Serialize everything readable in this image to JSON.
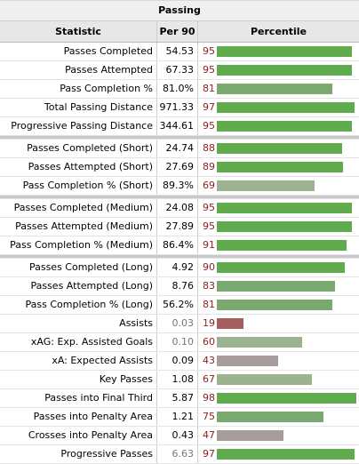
{
  "title": "Passing",
  "headers": {
    "statistic": "Statistic",
    "per90": "Per 90",
    "percentile": "Percentile"
  },
  "colors": {
    "bar_high": "#5fab4d",
    "bar_mid": "#7aa96f",
    "bar_low_mid": "#9cb38f",
    "bar_neutral": "#a79c9c",
    "bar_low": "#a65d5d",
    "percentile_text": "#8a1e1e"
  },
  "groups": [
    [
      {
        "stat": "Passes Completed",
        "per90": "54.53",
        "pct": "95",
        "level": 95,
        "grey": false
      },
      {
        "stat": "Passes Attempted",
        "per90": "67.33",
        "pct": "95",
        "level": 95,
        "grey": false
      },
      {
        "stat": "Pass Completion %",
        "per90": "81.0%",
        "pct": "81",
        "level": 81,
        "grey": false
      },
      {
        "stat": "Total Passing Distance",
        "per90": "971.33",
        "pct": "97",
        "level": 97,
        "grey": false
      },
      {
        "stat": "Progressive Passing Distance",
        "per90": "344.61",
        "pct": "95",
        "level": 95,
        "grey": false
      }
    ],
    [
      {
        "stat": "Passes Completed (Short)",
        "per90": "24.74",
        "pct": "88",
        "level": 88,
        "grey": false
      },
      {
        "stat": "Passes Attempted (Short)",
        "per90": "27.69",
        "pct": "89",
        "level": 89,
        "grey": false
      },
      {
        "stat": "Pass Completion % (Short)",
        "per90": "89.3%",
        "pct": "69",
        "level": 69,
        "grey": false
      }
    ],
    [
      {
        "stat": "Passes Completed (Medium)",
        "per90": "24.08",
        "pct": "95",
        "level": 95,
        "grey": false
      },
      {
        "stat": "Passes Attempted (Medium)",
        "per90": "27.89",
        "pct": "95",
        "level": 95,
        "grey": false
      },
      {
        "stat": "Pass Completion % (Medium)",
        "per90": "86.4%",
        "pct": "91",
        "level": 91,
        "grey": false
      }
    ],
    [
      {
        "stat": "Passes Completed (Long)",
        "per90": "4.92",
        "pct": "90",
        "level": 90,
        "grey": false
      },
      {
        "stat": "Passes Attempted (Long)",
        "per90": "8.76",
        "pct": "83",
        "level": 83,
        "grey": false
      },
      {
        "stat": "Pass Completion % (Long)",
        "per90": "56.2%",
        "pct": "81",
        "level": 81,
        "grey": false
      },
      {
        "stat": "Assists",
        "per90": "0.03",
        "pct": "19",
        "level": 19,
        "grey": true
      },
      {
        "stat": "xAG: Exp. Assisted Goals",
        "per90": "0.10",
        "pct": "60",
        "level": 60,
        "grey": true
      },
      {
        "stat": "xA: Expected Assists",
        "per90": "0.09",
        "pct": "43",
        "level": 43,
        "grey": false
      },
      {
        "stat": "Key Passes",
        "per90": "1.08",
        "pct": "67",
        "level": 67,
        "grey": false
      },
      {
        "stat": "Passes into Final Third",
        "per90": "5.87",
        "pct": "98",
        "level": 98,
        "grey": false
      },
      {
        "stat": "Passes into Penalty Area",
        "per90": "1.21",
        "pct": "75",
        "level": 75,
        "grey": false
      },
      {
        "stat": "Crosses into Penalty Area",
        "per90": "0.43",
        "pct": "47",
        "level": 47,
        "grey": false
      },
      {
        "stat": "Progressive Passes",
        "per90": "6.63",
        "pct": "97",
        "level": 97,
        "grey": true
      }
    ]
  ]
}
